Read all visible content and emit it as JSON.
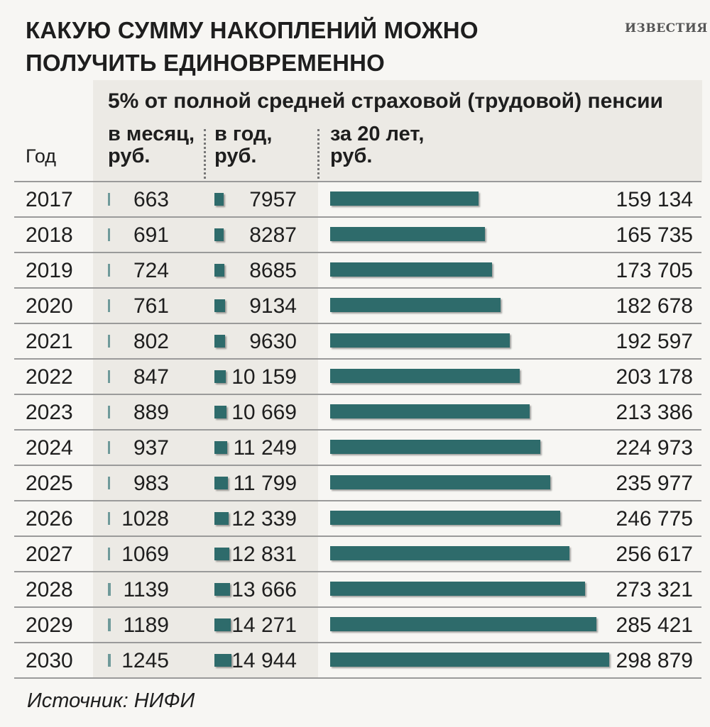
{
  "title_line1": "Какую сумму накоплений можно",
  "title_line2": "получить единовременно",
  "brand": "ИЗВЕСТИЯ",
  "source": "Источник: НИФИ",
  "chart_data": {
    "type": "table",
    "title": "Какую сумму накоплений можно получить единовременно",
    "subtitle": "5% от полной средней страховой (трудовой) пенсии",
    "columns": {
      "year": "Год",
      "monthly": "в месяц,\nруб.",
      "yearly": "в год,\nруб.",
      "total": "за 20 лет,\nруб."
    },
    "rows": [
      {
        "year": "2017",
        "monthly": 663,
        "monthly_label": "663",
        "yearly": 7957,
        "yearly_label": "7957",
        "total": 159134,
        "total_label": "159 134"
      },
      {
        "year": "2018",
        "monthly": 691,
        "monthly_label": "691",
        "yearly": 8287,
        "yearly_label": "8287",
        "total": 165735,
        "total_label": "165 735"
      },
      {
        "year": "2019",
        "monthly": 724,
        "monthly_label": "724",
        "yearly": 8685,
        "yearly_label": "8685",
        "total": 173705,
        "total_label": "173 705"
      },
      {
        "year": "2020",
        "monthly": 761,
        "monthly_label": "761",
        "yearly": 9134,
        "yearly_label": "9134",
        "total": 182678,
        "total_label": "182 678"
      },
      {
        "year": "2021",
        "monthly": 802,
        "monthly_label": "802",
        "yearly": 9630,
        "yearly_label": "9630",
        "total": 192597,
        "total_label": "192 597"
      },
      {
        "year": "2022",
        "monthly": 847,
        "monthly_label": "847",
        "yearly": 10159,
        "yearly_label": "10 159",
        "total": 203178,
        "total_label": "203 178"
      },
      {
        "year": "2023",
        "monthly": 889,
        "monthly_label": "889",
        "yearly": 10669,
        "yearly_label": "10 669",
        "total": 213386,
        "total_label": "213 386"
      },
      {
        "year": "2024",
        "monthly": 937,
        "monthly_label": "937",
        "yearly": 11249,
        "yearly_label": "11 249",
        "total": 224973,
        "total_label": "224 973"
      },
      {
        "year": "2025",
        "monthly": 983,
        "monthly_label": "983",
        "yearly": 11799,
        "yearly_label": "11 799",
        "total": 235977,
        "total_label": "235 977"
      },
      {
        "year": "2026",
        "monthly": 1028,
        "monthly_label": "1028",
        "yearly": 12339,
        "yearly_label": "12 339",
        "total": 246775,
        "total_label": "246 775"
      },
      {
        "year": "2027",
        "monthly": 1069,
        "monthly_label": "1069",
        "yearly": 12831,
        "yearly_label": "12 831",
        "total": 256617,
        "total_label": "256 617"
      },
      {
        "year": "2028",
        "monthly": 1139,
        "monthly_label": "1139",
        "yearly": 13666,
        "yearly_label": "13 666",
        "total": 273321,
        "total_label": "273 321"
      },
      {
        "year": "2029",
        "monthly": 1189,
        "monthly_label": "1189",
        "yearly": 14271,
        "yearly_label": "14 271",
        "total": 285421,
        "total_label": "285 421"
      },
      {
        "year": "2030",
        "monthly": 1245,
        "monthly_label": "1245",
        "yearly": 14944,
        "yearly_label": "14 944",
        "total": 298879,
        "total_label": "298 879"
      }
    ],
    "bar_color": "#2e6b6b",
    "grid": true,
    "legend": "none"
  }
}
